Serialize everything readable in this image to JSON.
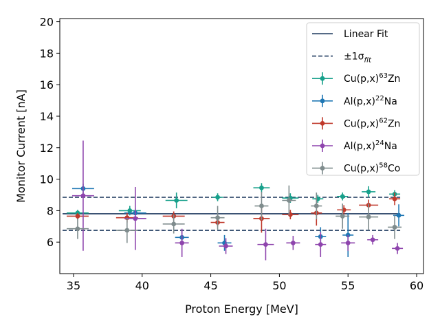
{
  "chart_data": {
    "type": "scatter",
    "xlabel": "Proton Energy [MeV]",
    "ylabel": "Monitor Current [nA]",
    "xlim": [
      34,
      60.5
    ],
    "ylim": [
      4.0,
      20.2
    ],
    "xticks": [
      35,
      40,
      45,
      50,
      55,
      60
    ],
    "yticks": [
      6,
      8,
      10,
      12,
      14,
      16,
      18,
      20
    ],
    "xtick_labels": [
      "35",
      "40",
      "45",
      "50",
      "55",
      "60"
    ],
    "ytick_labels": [
      "6",
      "8",
      "10",
      "12",
      "14",
      "16",
      "18",
      "20"
    ],
    "legend_position": "top-right",
    "fit": {
      "name": "Linear Fit",
      "value": 7.8,
      "x_range": [
        34.2,
        58.8
      ],
      "color": "#1f3a5f"
    },
    "band": {
      "name_prefix": "±1σ",
      "name_sub": "fit",
      "upper": 8.85,
      "lower": 6.75,
      "x_range": [
        34.2,
        58.8
      ],
      "color": "#1f3a5f"
    },
    "series": [
      {
        "name_pre": "Cu(p,x)",
        "name_sup": "63",
        "name_post": "Zn",
        "color": "#17a08b",
        "points": [
          {
            "x": 35.3,
            "y": 7.85,
            "xerr": 0.8,
            "yerr": 0.2
          },
          {
            "x": 39.1,
            "y": 8.0,
            "xerr": 0.8,
            "yerr": 0.3
          },
          {
            "x": 42.5,
            "y": 8.65,
            "xerr": 0.8,
            "yerr": 0.5
          },
          {
            "x": 45.5,
            "y": 8.85,
            "xerr": 0.4,
            "yerr": 0.25
          },
          {
            "x": 48.7,
            "y": 9.45,
            "xerr": 0.6,
            "yerr": 0.3
          },
          {
            "x": 50.8,
            "y": 8.8,
            "xerr": 0.6,
            "yerr": 0.3
          },
          {
            "x": 52.8,
            "y": 8.75,
            "xerr": 0.4,
            "yerr": 0.25
          },
          {
            "x": 54.6,
            "y": 8.9,
            "xerr": 0.4,
            "yerr": 0.25
          },
          {
            "x": 56.5,
            "y": 9.2,
            "xerr": 0.5,
            "yerr": 0.35
          },
          {
            "x": 58.4,
            "y": 9.05,
            "xerr": 0.4,
            "yerr": 0.25
          }
        ]
      },
      {
        "name_pre": "Al(p,x)",
        "name_sup": "22",
        "name_post": "Na",
        "color": "#1f77b4",
        "points": [
          {
            "x": 35.7,
            "y": 9.4,
            "xerr": 0.8,
            "yerr": 0.3
          },
          {
            "x": 39.5,
            "y": 7.85,
            "xerr": 0.8,
            "yerr": 0.3
          },
          {
            "x": 42.9,
            "y": 6.3,
            "xerr": 0.5,
            "yerr": 0.4
          },
          {
            "x": 46.0,
            "y": 5.95,
            "xerr": 0.5,
            "yerr": 0.5
          },
          {
            "x": 53.0,
            "y": 6.35,
            "xerr": 0.4,
            "yerr": 0.6
          },
          {
            "x": 55.0,
            "y": 6.45,
            "xerr": 0.4,
            "yerr": 1.4
          },
          {
            "x": 58.7,
            "y": 7.7,
            "xerr": 0.4,
            "yerr": 0.7
          }
        ]
      },
      {
        "name_pre": "Cu(p,x)",
        "name_sup": "62",
        "name_post": "Zn",
        "color": "#c0392b",
        "points": [
          {
            "x": 35.3,
            "y": 7.65,
            "xerr": 0.8,
            "yerr": 0.2
          },
          {
            "x": 38.9,
            "y": 7.55,
            "xerr": 0.8,
            "yerr": 0.3
          },
          {
            "x": 42.3,
            "y": 7.65,
            "xerr": 0.8,
            "yerr": 0.3
          },
          {
            "x": 45.5,
            "y": 7.25,
            "xerr": 0.5,
            "yerr": 0.25
          },
          {
            "x": 48.7,
            "y": 7.5,
            "xerr": 0.6,
            "yerr": 0.9
          },
          {
            "x": 50.8,
            "y": 7.75,
            "xerr": 0.6,
            "yerr": 0.3
          },
          {
            "x": 52.7,
            "y": 7.85,
            "xerr": 0.4,
            "yerr": 0.8
          },
          {
            "x": 54.7,
            "y": 8.05,
            "xerr": 0.5,
            "yerr": 0.3
          },
          {
            "x": 56.5,
            "y": 8.35,
            "xerr": 0.7,
            "yerr": 0.35
          },
          {
            "x": 58.4,
            "y": 8.75,
            "xerr": 0.4,
            "yerr": 0.4
          }
        ]
      },
      {
        "name_pre": "Al(p,x)",
        "name_sup": "24",
        "name_post": "Na",
        "color": "#8e44ad",
        "points": [
          {
            "x": 35.7,
            "y": 8.95,
            "xerr": 0.8,
            "yerr": 3.5
          },
          {
            "x": 39.5,
            "y": 7.5,
            "xerr": 0.8,
            "yerr": 2.0
          },
          {
            "x": 42.9,
            "y": 5.95,
            "xerr": 0.5,
            "yerr": 0.9
          },
          {
            "x": 46.1,
            "y": 5.75,
            "xerr": 0.5,
            "yerr": 0.5
          },
          {
            "x": 49.0,
            "y": 5.85,
            "xerr": 0.6,
            "yerr": 1.0
          },
          {
            "x": 51.0,
            "y": 5.95,
            "xerr": 0.5,
            "yerr": 0.45
          },
          {
            "x": 53.0,
            "y": 5.85,
            "xerr": 0.4,
            "yerr": 0.8
          },
          {
            "x": 55.0,
            "y": 5.95,
            "xerr": 0.5,
            "yerr": 0.5
          },
          {
            "x": 56.8,
            "y": 6.15,
            "xerr": 0.4,
            "yerr": 0.3
          },
          {
            "x": 58.6,
            "y": 5.6,
            "xerr": 0.4,
            "yerr": 0.35
          }
        ]
      },
      {
        "name_pre": "Cu(p,x)",
        "name_sup": "58",
        "name_post": "Co",
        "color": "#7f8c8d",
        "points": [
          {
            "x": 35.3,
            "y": 6.85,
            "xerr": 0.8,
            "yerr": 0.65
          },
          {
            "x": 38.9,
            "y": 6.75,
            "xerr": 0.8,
            "yerr": 0.8
          },
          {
            "x": 42.3,
            "y": 7.15,
            "xerr": 0.8,
            "yerr": 0.6
          },
          {
            "x": 45.5,
            "y": 7.55,
            "xerr": 0.5,
            "yerr": 0.75
          },
          {
            "x": 48.7,
            "y": 8.3,
            "xerr": 0.5,
            "yerr": 0.9
          },
          {
            "x": 50.7,
            "y": 8.65,
            "xerr": 0.5,
            "yerr": 0.95
          },
          {
            "x": 52.7,
            "y": 8.3,
            "xerr": 0.4,
            "yerr": 0.85
          },
          {
            "x": 54.6,
            "y": 7.65,
            "xerr": 0.5,
            "yerr": 0.8
          },
          {
            "x": 56.5,
            "y": 7.6,
            "xerr": 0.7,
            "yerr": 0.85
          },
          {
            "x": 58.4,
            "y": 6.95,
            "xerr": 0.5,
            "yerr": 0.75
          }
        ]
      }
    ]
  }
}
